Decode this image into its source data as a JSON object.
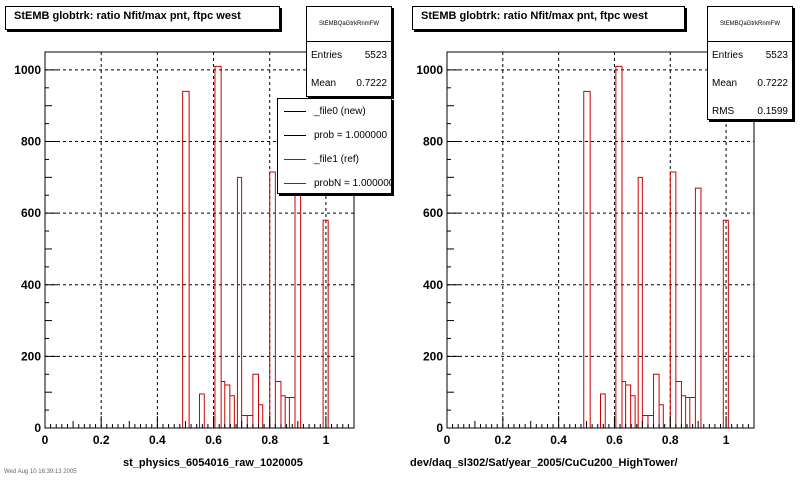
{
  "panels": [
    {
      "title": "StEMB globtrk: ratio Nfit/max pnt, ftpc west",
      "stats_name": "StEMBQaGtrkRnmFW",
      "stats": [
        {
          "label": "Entries",
          "value": "5523"
        },
        {
          "label": "Mean",
          "value": "0.7222"
        }
      ],
      "footer": "st_physics_6054016_raw_1020005",
      "legend": [
        {
          "label": "_file0 (new)",
          "color": "#000000"
        },
        {
          "label": "prob = 1.000000",
          "color": "#000000"
        },
        {
          "label": "_file1 (ref)",
          "color": "#cc0000"
        },
        {
          "label": "probN = 1.000000",
          "color": "#cc0000"
        }
      ]
    },
    {
      "title": "StEMB globtrk: ratio Nfit/max pnt, ftpc west",
      "stats_name": "StEMBQaGtrkRnmFW",
      "stats": [
        {
          "label": "Entries",
          "value": "5523"
        },
        {
          "label": "Mean",
          "value": "0.7222"
        },
        {
          "label": "RMS",
          "value": "0.1599"
        }
      ],
      "footer": "dev/daq_sl302/Sat/year_2005/CuCu200_HighTower/",
      "legend": []
    }
  ],
  "corner_text": "Wed Aug 10 16:39:13 2005",
  "chart_data": [
    {
      "type": "bar",
      "histogram": "step",
      "xlim": [
        0,
        1.1
      ],
      "ylim": [
        0,
        1050
      ],
      "xticks": [
        "0",
        "0.2",
        "0.4",
        "0.6",
        "0.8",
        "1"
      ],
      "yticks": [
        "0",
        "200",
        "400",
        "600",
        "800",
        "1000"
      ],
      "grid": true,
      "line_color": "#cc0000",
      "bins": [
        [
          0.49,
          0.513,
          940
        ],
        [
          0.55,
          0.567,
          95
        ],
        [
          0.605,
          0.627,
          1010
        ],
        [
          0.627,
          0.64,
          130
        ],
        [
          0.64,
          0.658,
          120
        ],
        [
          0.658,
          0.674,
          90
        ],
        [
          0.685,
          0.7,
          700
        ],
        [
          0.7,
          0.72,
          35
        ],
        [
          0.72,
          0.74,
          35
        ],
        [
          0.74,
          0.76,
          150
        ],
        [
          0.76,
          0.775,
          65
        ],
        [
          0.8,
          0.82,
          715
        ],
        [
          0.82,
          0.84,
          130
        ],
        [
          0.84,
          0.855,
          90
        ],
        [
          0.855,
          0.87,
          85
        ],
        [
          0.87,
          0.89,
          85
        ],
        [
          0.89,
          0.91,
          670
        ],
        [
          0.99,
          1.008,
          580
        ]
      ]
    },
    {
      "type": "bar",
      "histogram": "step",
      "xlim": [
        0,
        1.1
      ],
      "ylim": [
        0,
        1050
      ],
      "xticks": [
        "0",
        "0.2",
        "0.4",
        "0.6",
        "0.8",
        "1"
      ],
      "yticks": [
        "0",
        "200",
        "400",
        "600",
        "800",
        "1000"
      ],
      "grid": true,
      "line_color": "#cc0000",
      "bins": [
        [
          0.49,
          0.513,
          940
        ],
        [
          0.55,
          0.567,
          95
        ],
        [
          0.605,
          0.627,
          1010
        ],
        [
          0.627,
          0.64,
          130
        ],
        [
          0.64,
          0.658,
          120
        ],
        [
          0.658,
          0.674,
          90
        ],
        [
          0.685,
          0.7,
          700
        ],
        [
          0.7,
          0.72,
          35
        ],
        [
          0.72,
          0.74,
          35
        ],
        [
          0.74,
          0.76,
          150
        ],
        [
          0.76,
          0.775,
          65
        ],
        [
          0.8,
          0.82,
          715
        ],
        [
          0.82,
          0.84,
          130
        ],
        [
          0.84,
          0.855,
          90
        ],
        [
          0.855,
          0.87,
          85
        ],
        [
          0.87,
          0.89,
          85
        ],
        [
          0.89,
          0.91,
          670
        ],
        [
          0.99,
          1.008,
          580
        ]
      ]
    }
  ]
}
